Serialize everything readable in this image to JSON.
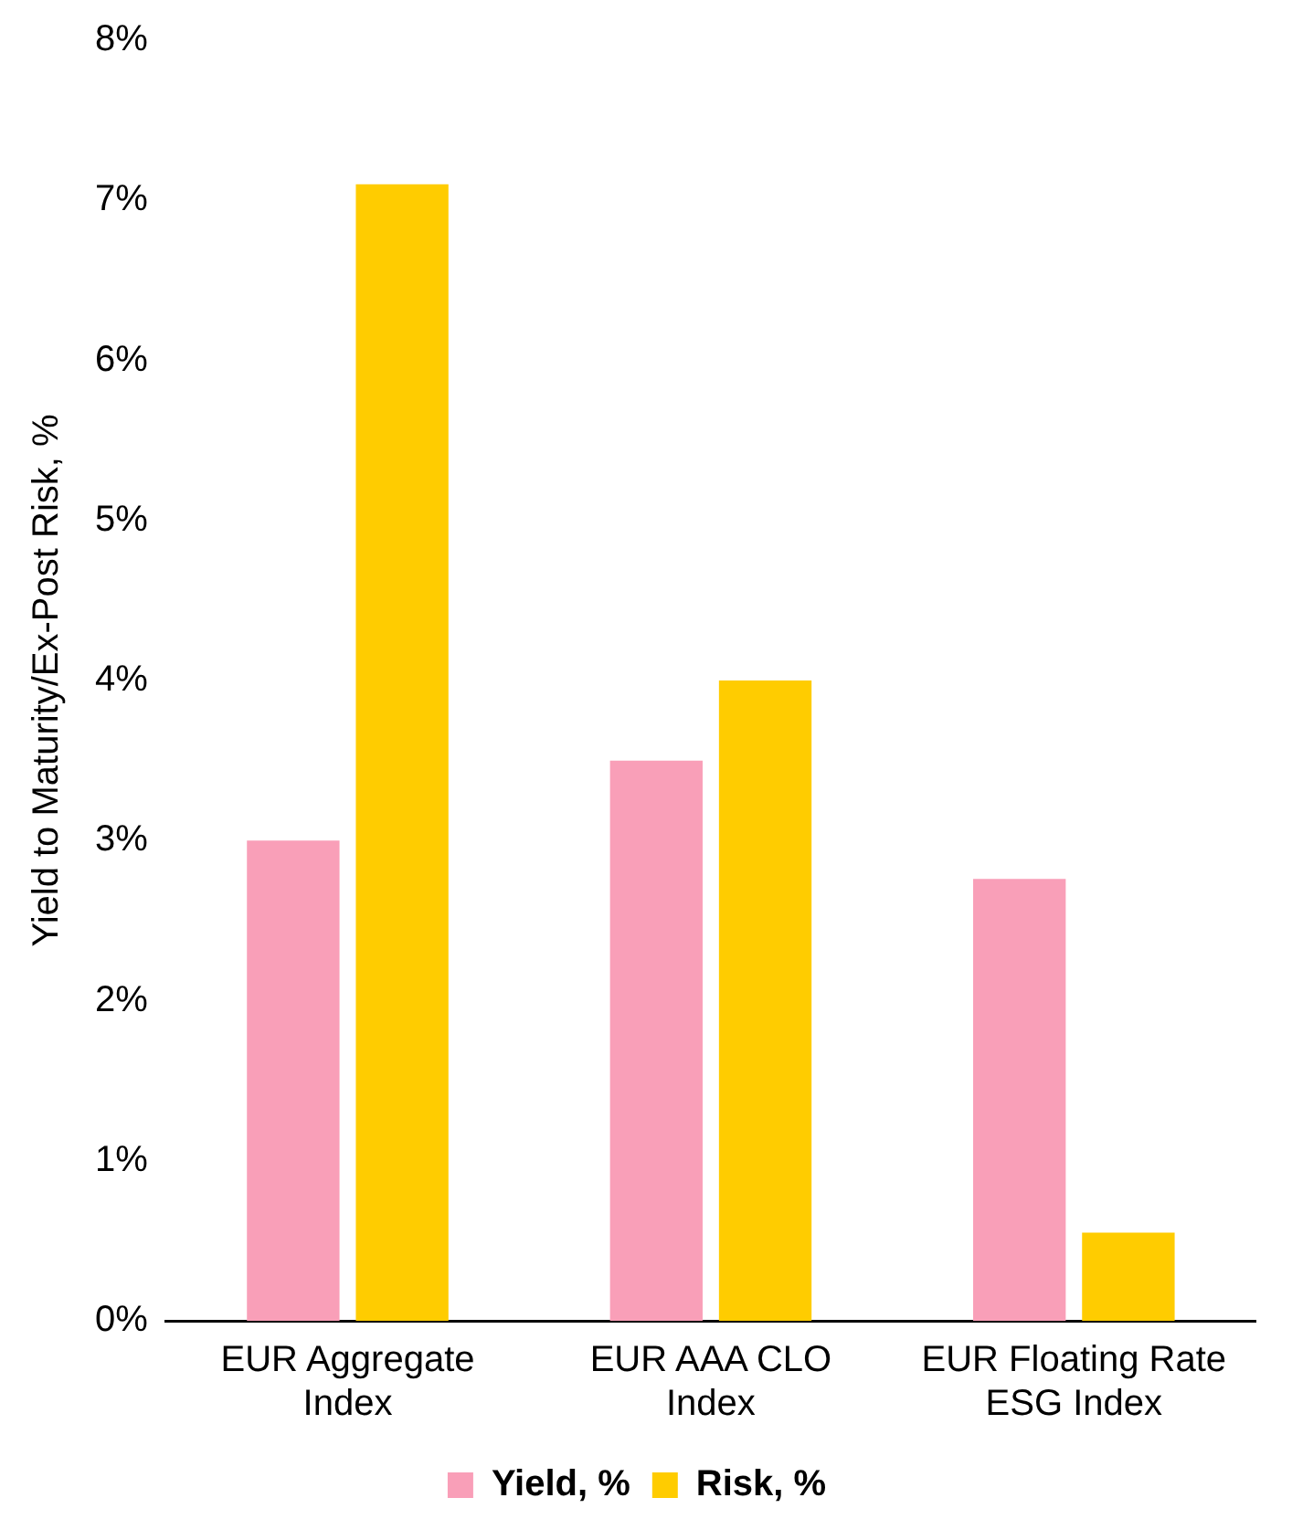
{
  "chart_data": {
    "type": "bar",
    "ylabel": "Yield to Maturity/Ex-Post Risk, %",
    "categories": [
      "EUR Aggregate Index",
      "EUR AAA CLO Index",
      "EUR Floating Rate ESG Index"
    ],
    "series": [
      {
        "name": "Yield, %",
        "color": "#f99fb8",
        "values": [
          3.0,
          3.5,
          2.76
        ]
      },
      {
        "name": "Risk, %",
        "color": "#ffcc00",
        "values": [
          7.1,
          4.0,
          0.55
        ]
      }
    ],
    "ylim": [
      0,
      8
    ],
    "yticks": [
      {
        "value": 0,
        "label": "0%"
      },
      {
        "value": 1,
        "label": "1%"
      },
      {
        "value": 2,
        "label": "2%"
      },
      {
        "value": 3,
        "label": "3%"
      },
      {
        "value": 4,
        "label": "4%"
      },
      {
        "value": 5,
        "label": "5%"
      },
      {
        "value": 6,
        "label": "6%"
      },
      {
        "value": 7,
        "label": "7%"
      },
      {
        "value": 8,
        "label": "8%"
      }
    ],
    "grid": false,
    "legend": "bottom"
  }
}
